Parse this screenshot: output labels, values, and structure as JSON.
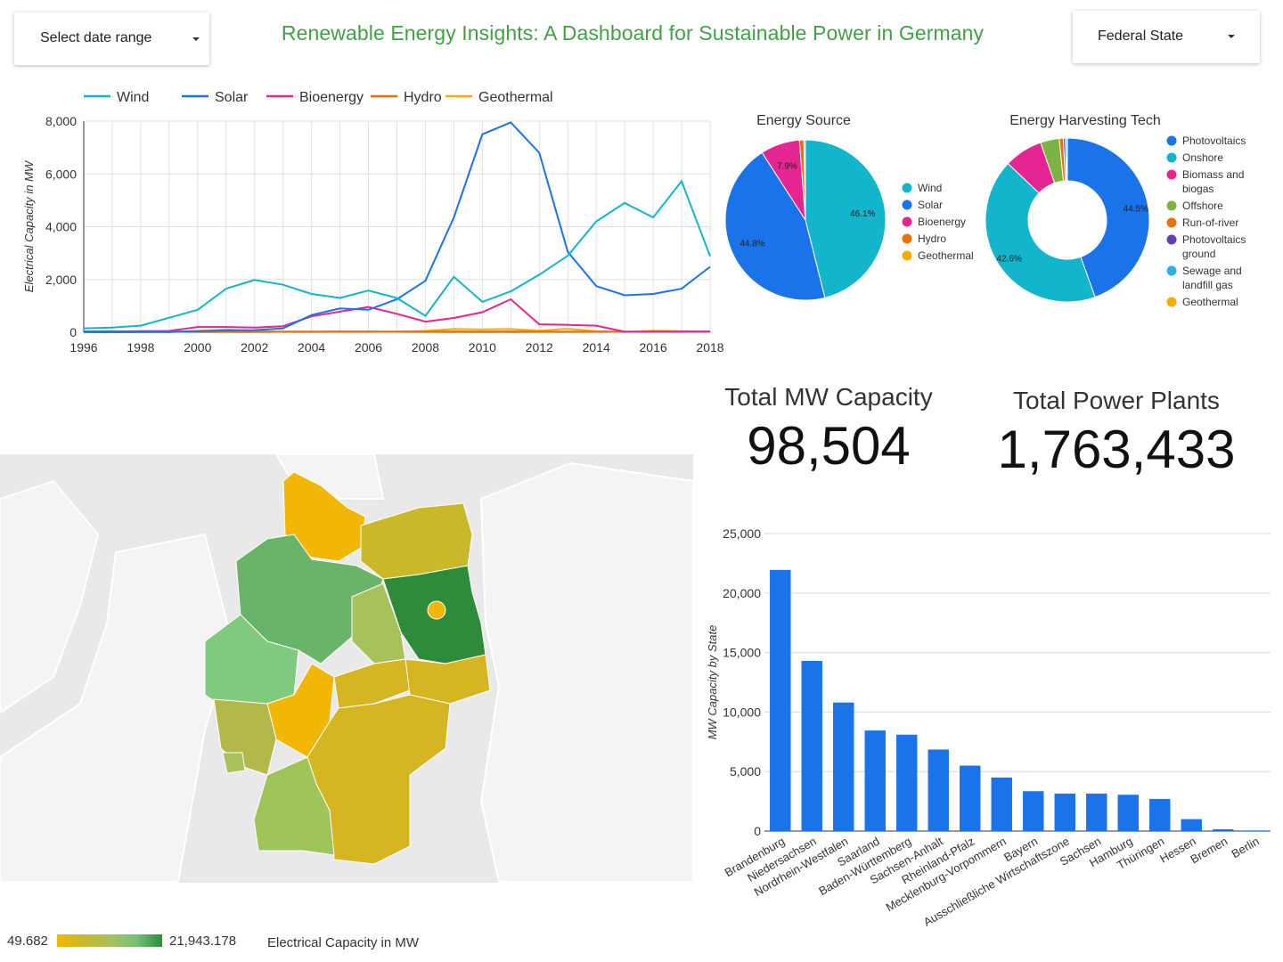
{
  "header": {
    "date_range_label": "Select date range",
    "title": "Renewable Energy Insights: A Dashboard for Sustainable Power in Germany",
    "state_filter_label": "Federal State"
  },
  "colors": {
    "wind": "#12b5cb",
    "solar": "#1a73e8",
    "bioenergy": "#e52592",
    "hydro": "#e8710a",
    "geothermal": "#f9ab00",
    "offshore": "#7cb342",
    "photovoltaics_ground": "#673ab7",
    "sewage": "#2bb1e8",
    "title_green": "#43a047",
    "bar": "#1a73e8"
  },
  "chart_data": [
    {
      "type": "line",
      "x": [
        1996,
        1997,
        1998,
        1999,
        2000,
        2001,
        2002,
        2003,
        2004,
        2005,
        2006,
        2007,
        2008,
        2009,
        2010,
        2011,
        2012,
        2013,
        2014,
        2015,
        2016,
        2017,
        2018
      ],
      "xticks": [
        "1996",
        "1998",
        "2000",
        "2002",
        "2004",
        "2006",
        "2008",
        "2010",
        "2012",
        "2014",
        "2016",
        "2018"
      ],
      "yticks": [
        "0",
        "2,000",
        "4,000",
        "6,000",
        "8,000"
      ],
      "ylim": [
        0,
        8000
      ],
      "ylabel": "Electrical Capacity in MW",
      "grid": true,
      "legend": "top",
      "series": [
        {
          "name": "Wind",
          "color": "#12b5cb",
          "values": [
            150,
            180,
            250,
            550,
            850,
            1650,
            1980,
            1800,
            1450,
            1300,
            1580,
            1300,
            620,
            2100,
            1150,
            1550,
            2180,
            2900,
            4200,
            4900,
            4350,
            5720,
            2880
          ]
        },
        {
          "name": "Solar",
          "color": "#1a73e8",
          "values": [
            5,
            5,
            10,
            15,
            40,
            70,
            80,
            150,
            650,
            900,
            850,
            1250,
            1950,
            4350,
            7500,
            7950,
            6800,
            3050,
            1750,
            1400,
            1450,
            1650,
            2480
          ]
        },
        {
          "name": "Bioenergy",
          "color": "#e52592",
          "values": [
            30,
            35,
            40,
            50,
            200,
            200,
            180,
            230,
            600,
            780,
            960,
            700,
            400,
            540,
            760,
            1250,
            300,
            280,
            250,
            20,
            20,
            25,
            30
          ]
        },
        {
          "name": "Hydro",
          "color": "#e8710a",
          "values": [
            20,
            20,
            25,
            25,
            30,
            30,
            30,
            25,
            25,
            30,
            30,
            25,
            25,
            30,
            30,
            30,
            25,
            25,
            20,
            20,
            20,
            20,
            20
          ]
        },
        {
          "name": "Geothermal",
          "color": "#f9ab00",
          "values": [
            0,
            0,
            0,
            0,
            50,
            100,
            60,
            10,
            10,
            10,
            10,
            20,
            50,
            120,
            110,
            120,
            60,
            130,
            40,
            10,
            60,
            40,
            20
          ]
        }
      ]
    },
    {
      "type": "pie",
      "title": "Energy Source",
      "labels": [
        "Wind",
        "Solar",
        "Bioenergy",
        "Hydro",
        "Geothermal"
      ],
      "values": [
        46.1,
        44.8,
        7.9,
        0.9,
        0.3
      ],
      "colors": [
        "#12b5cb",
        "#1a73e8",
        "#e52592",
        "#e8710a",
        "#f9ab00"
      ],
      "shown_labels": [
        "46.1%",
        "44.8%",
        "7.9%",
        "",
        ""
      ],
      "legend": "right"
    },
    {
      "type": "pie",
      "donut": true,
      "title": "Energy Harvesting Tech",
      "labels": [
        "Photovoltaics",
        "Onshore",
        "Biomass and biogas",
        "Offshore",
        "Run-of-river",
        "Photovoltaics ground",
        "Sewage and landfill gas",
        "Geothermal"
      ],
      "legend_lines": [
        [
          "Photovoltaics"
        ],
        [
          "Onshore"
        ],
        [
          "Biomass and",
          "biogas"
        ],
        [
          "Offshore"
        ],
        [
          "Run-of-river"
        ],
        [
          "Photovoltaics",
          "ground"
        ],
        [
          "Sewage and",
          "landfill gas"
        ],
        [
          "Geothermal"
        ]
      ],
      "values": [
        44.5,
        42.6,
        7.6,
        3.7,
        0.8,
        0.4,
        0.3,
        0.1
      ],
      "colors": [
        "#1a73e8",
        "#12b5cb",
        "#e52592",
        "#7cb342",
        "#e8710a",
        "#673ab7",
        "#2bb1e8",
        "#f9ab00"
      ],
      "shown_labels": [
        "44.5%",
        "42.6%",
        "",
        "",
        "",
        "",
        "",
        ""
      ],
      "legend": "right"
    },
    {
      "type": "bar",
      "categories": [
        "Brandenburg",
        "Niedersachsen",
        "Nordrhein-Westfalen",
        "Saarland",
        "Baden-Württemberg",
        "Sachsen-Anhalt",
        "Rheinland-Pfalz",
        "Mecklenburg-Vorpommern",
        "Bayern",
        "Ausschließliche Wirtschaftszone",
        "Sachsen",
        "Hamburg",
        "Thüringen",
        "Hessen",
        "Bremen",
        "Berlin"
      ],
      "values": [
        21943,
        14300,
        10800,
        8450,
        8100,
        6850,
        5500,
        4500,
        3350,
        3150,
        3150,
        3050,
        2700,
        1000,
        150,
        50
      ],
      "yticks": [
        "0",
        "5,000",
        "10,000",
        "15,000",
        "20,000",
        "25,000"
      ],
      "ylim": [
        0,
        25000
      ],
      "ylabel": "MW Capacity by State"
    }
  ],
  "kpis": {
    "capacity_label": "Total MW Capacity",
    "capacity_value": "98,504",
    "plants_label": "Total Power Plants",
    "plants_value": "1,763,433"
  },
  "map": {
    "legend_min": "49.682",
    "legend_max": "21,943.178",
    "legend_title": "Electrical Capacity in MW",
    "scale_colors": [
      "#f2b705",
      "#c9b92a",
      "#a7c25a",
      "#78c078",
      "#2e8b3a"
    ]
  }
}
